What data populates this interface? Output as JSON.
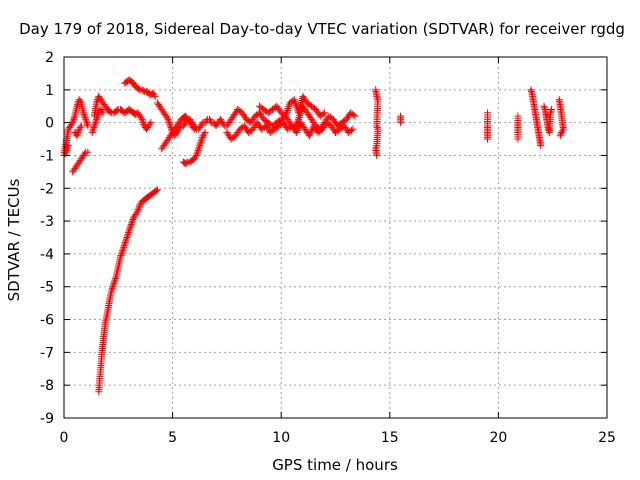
{
  "chart_data": {
    "type": "scatter",
    "title": "Day 179 of 2018, Sidereal Day-to-day VTEC variation (SDTVAR) for receiver rgdg",
    "xlabel": "GPS time / hours",
    "ylabel": "SDTVAR / TECUs",
    "xlim": [
      0,
      25
    ],
    "ylim": [
      -9,
      2
    ],
    "xticks": [
      0,
      5,
      10,
      15,
      20,
      25
    ],
    "yticks": [
      -9,
      -8,
      -7,
      -6,
      -5,
      -4,
      -3,
      -2,
      -1,
      0,
      1,
      2
    ],
    "grid": true,
    "marker": "plus",
    "color": "#ff0000",
    "series": [
      {
        "name": "SDTVAR",
        "segments": [
          {
            "x": [
              0.0,
              0.1,
              0.2,
              0.3,
              0.4,
              0.5,
              0.6,
              0.7,
              0.8,
              0.9,
              1.0,
              1.1
            ],
            "y": [
              -0.9,
              -0.6,
              -0.2,
              -0.1,
              0.0,
              0.2,
              0.5,
              0.7,
              0.6,
              0.3,
              0.1,
              -0.1
            ]
          },
          {
            "x": [
              0.0,
              0.1,
              0.2
            ],
            "y": [
              -1.0,
              -0.9,
              -0.7
            ]
          },
          {
            "x": [
              0.4,
              0.5,
              0.6,
              0.7,
              0.8,
              0.9,
              1.0,
              1.1
            ],
            "y": [
              -1.5,
              -1.4,
              -1.3,
              -1.2,
              -1.1,
              -1.0,
              -0.9,
              -0.9
            ]
          },
          {
            "x": [
              0.5,
              0.6,
              0.7,
              0.8
            ],
            "y": [
              -0.3,
              -0.4,
              -0.2,
              -0.1
            ]
          },
          {
            "x": [
              1.6,
              1.65,
              1.7,
              1.75,
              1.8,
              1.85,
              1.9,
              2.0,
              2.1,
              2.2,
              2.3,
              2.4,
              2.5,
              2.6,
              2.7,
              2.8,
              2.9,
              3.0,
              3.1,
              3.2,
              3.3,
              3.4,
              3.5,
              3.6,
              3.7,
              3.8,
              3.9,
              4.0,
              4.1,
              4.2,
              4.3
            ],
            "y": [
              -8.2,
              -7.8,
              -7.4,
              -7.0,
              -6.7,
              -6.4,
              -6.1,
              -5.8,
              -5.4,
              -5.1,
              -4.9,
              -4.7,
              -4.4,
              -4.1,
              -3.9,
              -3.7,
              -3.5,
              -3.3,
              -3.1,
              -2.9,
              -2.8,
              -2.7,
              -2.5,
              -2.4,
              -2.35,
              -2.3,
              -2.25,
              -2.2,
              -2.15,
              -2.1,
              -2.05
            ]
          },
          {
            "x": [
              1.4,
              1.5,
              1.6,
              1.7,
              1.8,
              1.9,
              2.0,
              2.1,
              2.2,
              2.3,
              2.4,
              2.5,
              2.6,
              2.7,
              2.8,
              2.9,
              3.0,
              3.1,
              3.2,
              3.3,
              3.4,
              3.5,
              3.6,
              3.7,
              3.8,
              3.9,
              4.0
            ],
            "y": [
              0.2,
              0.6,
              0.8,
              0.7,
              0.6,
              0.5,
              0.4,
              0.35,
              0.3,
              0.3,
              0.35,
              0.4,
              0.4,
              0.35,
              0.3,
              0.35,
              0.4,
              0.35,
              0.3,
              0.25,
              0.3,
              0.2,
              0.1,
              -0.1,
              -0.2,
              -0.1,
              0.0
            ]
          },
          {
            "x": [
              1.3,
              1.4,
              1.5,
              1.6,
              1.7,
              1.8
            ],
            "y": [
              -0.3,
              -0.1,
              0.1,
              0.3,
              0.4,
              0.3
            ]
          },
          {
            "x": [
              2.8,
              2.9,
              3.0,
              3.1,
              3.2,
              3.3,
              3.4,
              3.5,
              3.6,
              3.7,
              3.8,
              3.9,
              4.0,
              4.1,
              4.2
            ],
            "y": [
              1.2,
              1.25,
              1.3,
              1.25,
              1.2,
              1.1,
              1.05,
              1.0,
              1.0,
              0.95,
              0.95,
              0.9,
              0.85,
              0.9,
              0.8
            ]
          },
          {
            "x": [
              4.3,
              4.4,
              4.5,
              4.6,
              4.7,
              4.8,
              4.9,
              5.0,
              5.1,
              5.2,
              5.3,
              5.4,
              5.5,
              5.6,
              5.7,
              5.8,
              5.9,
              6.0,
              6.1,
              6.2,
              6.3,
              6.4,
              6.5,
              6.6,
              6.7,
              6.8,
              6.9,
              7.0,
              7.1,
              7.2,
              7.3,
              7.4,
              7.5,
              7.6,
              7.7,
              7.8,
              7.9,
              8.0
            ],
            "y": [
              0.6,
              0.5,
              0.4,
              0.3,
              0.2,
              0.1,
              -0.1,
              -0.3,
              -0.4,
              -0.3,
              -0.2,
              -0.1,
              -0.1,
              0.0,
              0.1,
              0.1,
              0.0,
              -0.1,
              -0.2,
              -0.2,
              -0.1,
              0.0,
              0.0,
              0.1,
              0.1,
              0.0,
              0.0,
              -0.1,
              0.0,
              0.1,
              0.0,
              -0.1,
              -0.1,
              0.0,
              0.1,
              0.2,
              0.3,
              0.4
            ]
          },
          {
            "x": [
              4.5,
              4.6,
              4.7,
              4.8,
              4.9,
              5.0,
              5.1,
              5.2,
              5.3,
              5.4,
              5.5,
              5.6,
              5.7,
              5.8,
              5.9,
              6.0
            ],
            "y": [
              -0.8,
              -0.7,
              -0.6,
              -0.5,
              -0.4,
              -0.3,
              -0.2,
              -0.1,
              0.0,
              0.1,
              0.15,
              0.2,
              0.1,
              0.0,
              -0.1,
              -0.2
            ]
          },
          {
            "x": [
              5.5,
              5.6,
              5.7,
              5.8,
              5.9,
              6.0,
              6.1,
              6.2,
              6.3,
              6.4,
              6.5
            ],
            "y": [
              -1.2,
              -1.25,
              -1.2,
              -1.2,
              -1.15,
              -1.1,
              -1.0,
              -0.8,
              -0.6,
              -0.4,
              -0.3
            ]
          },
          {
            "x": [
              8.0,
              8.2,
              8.4,
              8.6,
              8.8,
              9.0,
              9.2,
              9.4,
              9.6,
              9.8,
              10.0,
              10.2,
              10.4,
              10.6,
              10.8,
              11.0,
              11.2,
              11.4,
              11.6,
              11.8,
              12.0,
              12.2,
              12.4,
              12.6,
              12.8,
              13.0,
              13.2,
              13.4
            ],
            "y": [
              0.4,
              0.3,
              0.1,
              0.0,
              0.2,
              0.3,
              0.1,
              0.0,
              -0.1,
              0.0,
              0.1,
              0.2,
              0.0,
              -0.2,
              0.1,
              0.5,
              0.3,
              0.1,
              -0.1,
              -0.2,
              0.0,
              0.2,
              0.1,
              -0.1,
              0.0,
              0.1,
              0.3,
              0.2
            ]
          },
          {
            "x": [
              7.5,
              7.7,
              7.9,
              8.1,
              8.3,
              8.5,
              8.7,
              8.9,
              9.1,
              9.3,
              9.5,
              9.7,
              9.9,
              10.1,
              10.3,
              10.5,
              10.7,
              10.9,
              11.1,
              11.3,
              11.5,
              11.7,
              11.9,
              12.1,
              12.3,
              12.5,
              12.7,
              12.9,
              13.1,
              13.3
            ],
            "y": [
              -0.3,
              -0.5,
              -0.4,
              -0.2,
              -0.1,
              -0.3,
              -0.2,
              0.0,
              -0.2,
              -0.1,
              -0.3,
              -0.2,
              -0.1,
              0.0,
              -0.2,
              -0.1,
              -0.3,
              0.0,
              -0.2,
              -0.4,
              -0.1,
              -0.3,
              -0.2,
              0.0,
              -0.1,
              -0.3,
              -0.2,
              -0.1,
              -0.3,
              -0.2
            ]
          },
          {
            "x": [
              9.0,
              9.2,
              9.4,
              9.6,
              9.8,
              10.0,
              10.2,
              10.4,
              10.6,
              10.8,
              11.0,
              11.2,
              11.4,
              11.6,
              11.8,
              12.0
            ],
            "y": [
              0.5,
              0.4,
              0.3,
              0.4,
              0.5,
              0.3,
              0.2,
              0.6,
              0.7,
              0.3,
              0.8,
              0.6,
              0.5,
              0.4,
              0.2,
              0.3
            ]
          },
          {
            "x": [
              14.35,
              14.4,
              14.45,
              14.4,
              14.45,
              14.4,
              14.35,
              14.4
            ],
            "y": [
              1.0,
              0.8,
              0.7,
              -0.1,
              -0.2,
              -0.7,
              -0.8,
              -1.0
            ]
          },
          {
            "x": [
              15.5,
              15.5,
              15.5
            ],
            "y": [
              0.2,
              0.1,
              0.0
            ]
          },
          {
            "x": [
              19.5,
              19.5,
              19.5,
              19.5,
              19.5,
              19.5,
              19.5
            ],
            "y": [
              0.3,
              0.1,
              -0.1,
              -0.2,
              -0.3,
              -0.4,
              -0.5
            ]
          },
          {
            "x": [
              20.9,
              20.9,
              20.9,
              20.9,
              20.9,
              20.9
            ],
            "y": [
              0.2,
              0.0,
              -0.1,
              -0.2,
              -0.3,
              -0.5
            ]
          },
          {
            "x": [
              21.5,
              21.55,
              21.6,
              21.65,
              21.7,
              21.75,
              21.8,
              21.85,
              21.9,
              21.95
            ],
            "y": [
              1.0,
              0.9,
              0.7,
              0.5,
              0.3,
              0.1,
              -0.1,
              -0.3,
              -0.5,
              -0.7
            ]
          },
          {
            "x": [
              22.1,
              22.15,
              22.2,
              22.25,
              22.3,
              22.35,
              22.4,
              22.45
            ],
            "y": [
              0.5,
              0.4,
              0.2,
              0.0,
              -0.2,
              -0.3,
              0.3,
              0.4
            ]
          },
          {
            "x": [
              22.8,
              22.85,
              22.9,
              22.95,
              23.0,
              22.9,
              22.85
            ],
            "y": [
              0.7,
              0.5,
              0.3,
              0.0,
              -0.2,
              -0.3,
              -0.4
            ]
          }
        ]
      }
    ]
  }
}
